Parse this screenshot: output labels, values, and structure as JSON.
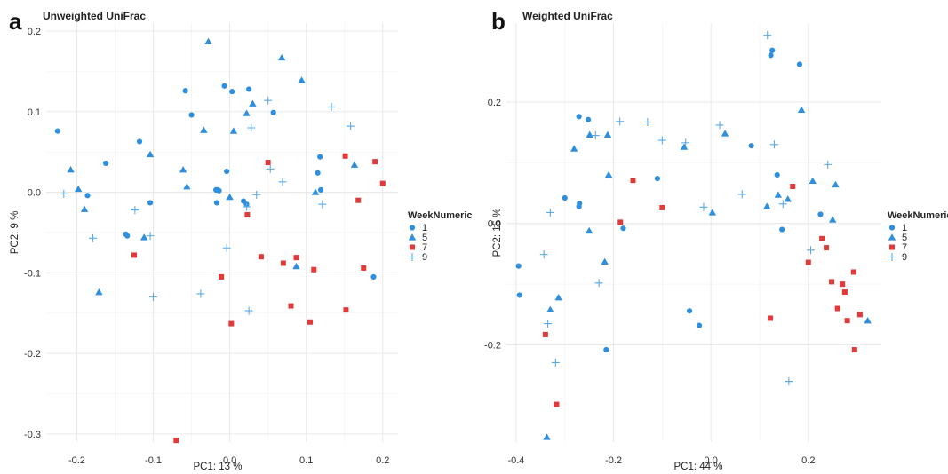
{
  "chart_data": [
    {
      "type": "scatter",
      "panel_letter": "a",
      "title": "Unweighted UniFrac",
      "xlabel": "PC1:  13 %",
      "ylabel": "PC2:  9 %",
      "xlim": [
        -0.24,
        0.22
      ],
      "ylim": [
        -0.31,
        0.21
      ],
      "xticks": [
        -0.2,
        -0.1,
        0.0,
        0.1,
        0.2
      ],
      "xtick_labels": [
        "-0.2",
        "-0.1",
        "0.0",
        "0.1",
        "0.2"
      ],
      "yticks": [
        -0.3,
        -0.2,
        -0.1,
        0.0,
        0.1,
        0.2
      ],
      "ytick_labels": [
        "-0.3",
        "-0.2",
        "-0.1",
        "0.0",
        "0.1",
        "0.2"
      ],
      "grid": true,
      "legend": {
        "title": "WeekNumeric",
        "position": "right"
      },
      "series": [
        {
          "name": "1",
          "marker": "circle",
          "color": "#2f8fdc",
          "points": [
            [
              -0.225,
              0.076
            ],
            [
              -0.162,
              0.036
            ],
            [
              -0.186,
              -0.004
            ],
            [
              -0.118,
              0.063
            ],
            [
              -0.104,
              -0.013
            ],
            [
              -0.136,
              -0.052
            ],
            [
              -0.134,
              -0.054
            ],
            [
              -0.058,
              0.126
            ],
            [
              -0.05,
              0.096
            ],
            [
              -0.007,
              0.132
            ],
            [
              0.003,
              0.125
            ],
            [
              0.025,
              0.128
            ],
            [
              0.057,
              0.099
            ],
            [
              -0.018,
              0.003
            ],
            [
              -0.016,
              0.003
            ],
            [
              -0.014,
              0.002
            ],
            [
              -0.004,
              0.026
            ],
            [
              -0.017,
              -0.013
            ],
            [
              0.018,
              -0.011
            ],
            [
              0.022,
              -0.015
            ],
            [
              0.118,
              0.044
            ],
            [
              0.115,
              0.024
            ],
            [
              0.119,
              0.003
            ],
            [
              0.188,
              -0.105
            ]
          ]
        },
        {
          "name": "5",
          "marker": "triangle",
          "color": "#2f8fdc",
          "points": [
            [
              -0.208,
              0.028
            ],
            [
              -0.198,
              0.004
            ],
            [
              -0.19,
              -0.021
            ],
            [
              -0.171,
              -0.124
            ],
            [
              -0.104,
              0.047
            ],
            [
              -0.112,
              -0.056
            ],
            [
              -0.061,
              0.028
            ],
            [
              -0.056,
              0.007
            ],
            [
              -0.034,
              0.077
            ],
            [
              -0.028,
              0.187
            ],
            [
              0.005,
              0.076
            ],
            [
              0.0,
              -0.006
            ],
            [
              0.022,
              0.098
            ],
            [
              0.03,
              0.11
            ],
            [
              0.068,
              0.167
            ],
            [
              0.094,
              0.139
            ],
            [
              0.112,
              0.0
            ],
            [
              0.087,
              -0.092
            ],
            [
              0.163,
              0.034
            ]
          ]
        },
        {
          "name": "7",
          "marker": "square",
          "color": "#e03a3a",
          "points": [
            [
              -0.125,
              -0.078
            ],
            [
              -0.07,
              -0.308
            ],
            [
              -0.011,
              -0.105
            ],
            [
              0.002,
              -0.163
            ],
            [
              0.023,
              -0.028
            ],
            [
              0.041,
              -0.08
            ],
            [
              0.05,
              0.037
            ],
            [
              0.07,
              -0.088
            ],
            [
              0.08,
              -0.141
            ],
            [
              0.087,
              -0.081
            ],
            [
              0.105,
              -0.161
            ],
            [
              0.11,
              -0.096
            ],
            [
              0.151,
              0.045
            ],
            [
              0.152,
              -0.146
            ],
            [
              0.168,
              -0.01
            ],
            [
              0.175,
              -0.094
            ],
            [
              0.19,
              0.038
            ],
            [
              0.2,
              0.011
            ]
          ]
        },
        {
          "name": "9",
          "marker": "plus",
          "color": "#5aa9e6",
          "points": [
            [
              -0.217,
              -0.002
            ],
            [
              -0.179,
              -0.057
            ],
            [
              -0.124,
              -0.022
            ],
            [
              -0.104,
              -0.054
            ],
            [
              -0.1,
              -0.13
            ],
            [
              -0.038,
              -0.126
            ],
            [
              -0.004,
              -0.069
            ],
            [
              0.022,
              -0.018
            ],
            [
              0.025,
              -0.147
            ],
            [
              0.028,
              0.08
            ],
            [
              0.035,
              -0.003
            ],
            [
              0.05,
              0.114
            ],
            [
              0.053,
              0.029
            ],
            [
              0.069,
              0.013
            ],
            [
              0.121,
              -0.015
            ],
            [
              0.133,
              0.106
            ],
            [
              0.158,
              0.082
            ]
          ]
        }
      ]
    },
    {
      "type": "scatter",
      "panel_letter": "b",
      "title": "Weighted UniFrac",
      "xlabel": "PC1:  44 %",
      "ylabel": "PC2:  15 %",
      "xlim": [
        -0.42,
        0.35
      ],
      "ylim": [
        -0.36,
        0.33
      ],
      "xticks": [
        -0.4,
        -0.2,
        0.0,
        0.2
      ],
      "xtick_labels": [
        "-0.4",
        "-0.2",
        "0.0",
        "0.2"
      ],
      "yticks": [
        -0.2,
        0.0,
        0.2
      ],
      "ytick_labels": [
        "-0.2",
        "0.0",
        "0.2"
      ],
      "grid": true,
      "legend": {
        "title": "WeekNumeric",
        "position": "right"
      },
      "series": [
        {
          "name": "1",
          "marker": "circle",
          "color": "#2f8fdc",
          "points": [
            [
              -0.395,
              -0.07
            ],
            [
              -0.393,
              -0.118
            ],
            [
              -0.3,
              0.042
            ],
            [
              -0.27,
              0.033
            ],
            [
              -0.271,
              0.028
            ],
            [
              -0.271,
              0.176
            ],
            [
              -0.252,
              0.171
            ],
            [
              -0.215,
              -0.208
            ],
            [
              -0.18,
              -0.008
            ],
            [
              -0.11,
              0.074
            ],
            [
              -0.044,
              -0.144
            ],
            [
              -0.024,
              -0.168
            ],
            [
              0.083,
              0.128
            ],
            [
              0.123,
              0.277
            ],
            [
              0.126,
              0.285
            ],
            [
              0.182,
              0.262
            ],
            [
              0.136,
              0.08
            ],
            [
              0.146,
              -0.01
            ],
            [
              0.225,
              0.015
            ]
          ]
        },
        {
          "name": "5",
          "marker": "triangle",
          "color": "#2f8fdc",
          "points": [
            [
              -0.33,
              -0.142
            ],
            [
              -0.337,
              -0.352
            ],
            [
              -0.313,
              -0.122
            ],
            [
              -0.281,
              0.123
            ],
            [
              -0.249,
              0.146
            ],
            [
              -0.25,
              -0.012
            ],
            [
              -0.218,
              -0.063
            ],
            [
              -0.212,
              0.146
            ],
            [
              -0.21,
              0.08
            ],
            [
              -0.055,
              0.126
            ],
            [
              0.003,
              0.018
            ],
            [
              0.029,
              0.148
            ],
            [
              0.115,
              0.028
            ],
            [
              0.138,
              0.047
            ],
            [
              0.158,
              0.04
            ],
            [
              0.186,
              0.187
            ],
            [
              0.209,
              0.07
            ],
            [
              0.25,
              0.006
            ],
            [
              0.256,
              0.064
            ],
            [
              0.322,
              -0.16
            ]
          ]
        },
        {
          "name": "7",
          "marker": "square",
          "color": "#e03a3a",
          "points": [
            [
              -0.34,
              -0.183
            ],
            [
              -0.317,
              -0.298
            ],
            [
              -0.186,
              0.002
            ],
            [
              -0.16,
              0.071
            ],
            [
              -0.1,
              0.026
            ],
            [
              0.122,
              -0.156
            ],
            [
              0.168,
              0.061
            ],
            [
              0.2,
              -0.064
            ],
            [
              0.228,
              -0.025
            ],
            [
              0.237,
              -0.04
            ],
            [
              0.248,
              -0.096
            ],
            [
              0.26,
              -0.14
            ],
            [
              0.27,
              -0.1
            ],
            [
              0.275,
              -0.113
            ],
            [
              0.28,
              -0.16
            ],
            [
              0.293,
              -0.08
            ],
            [
              0.295,
              -0.208
            ],
            [
              0.306,
              -0.15
            ]
          ]
        },
        {
          "name": "9",
          "marker": "plus",
          "color": "#5aa9e6",
          "points": [
            [
              -0.343,
              -0.051
            ],
            [
              -0.335,
              -0.165
            ],
            [
              -0.33,
              0.018
            ],
            [
              -0.319,
              -0.229
            ],
            [
              -0.23,
              -0.098
            ],
            [
              -0.237,
              0.145
            ],
            [
              -0.187,
              0.168
            ],
            [
              -0.13,
              0.167
            ],
            [
              -0.1,
              0.137
            ],
            [
              -0.052,
              0.133
            ],
            [
              -0.015,
              0.027
            ],
            [
              0.018,
              0.162
            ],
            [
              0.064,
              0.048
            ],
            [
              0.116,
              0.31
            ],
            [
              0.13,
              0.13
            ],
            [
              0.148,
              0.032
            ],
            [
              0.16,
              -0.26
            ],
            [
              0.205,
              -0.044
            ],
            [
              0.24,
              0.097
            ]
          ]
        }
      ]
    }
  ]
}
